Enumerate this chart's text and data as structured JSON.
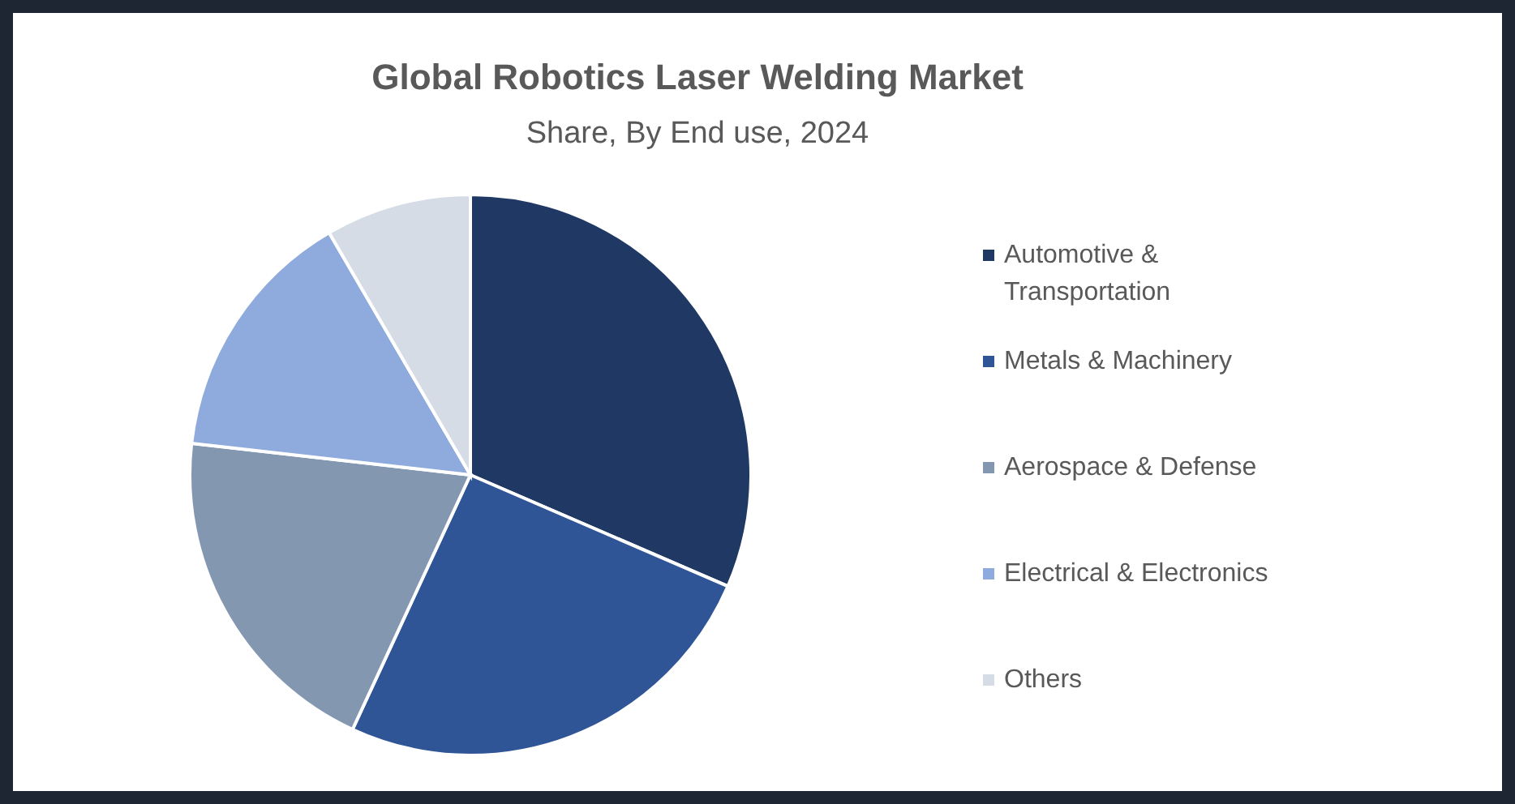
{
  "chart_data": {
    "type": "pie",
    "title": "Global Robotics Laser Welding Market",
    "subtitle": "Share, By End use, 2024",
    "categories": [
      "Automotive & Transportation",
      "Metals & Machinery",
      "Aerospace & Defense",
      "Electrical & Electronics",
      "Others"
    ],
    "values": [
      31.5,
      25.4,
      19.9,
      14.8,
      8.4
    ],
    "colors": [
      "#1f3864",
      "#2f5597",
      "#8497b0",
      "#8faadc",
      "#d6dce5"
    ],
    "legend": "right"
  }
}
